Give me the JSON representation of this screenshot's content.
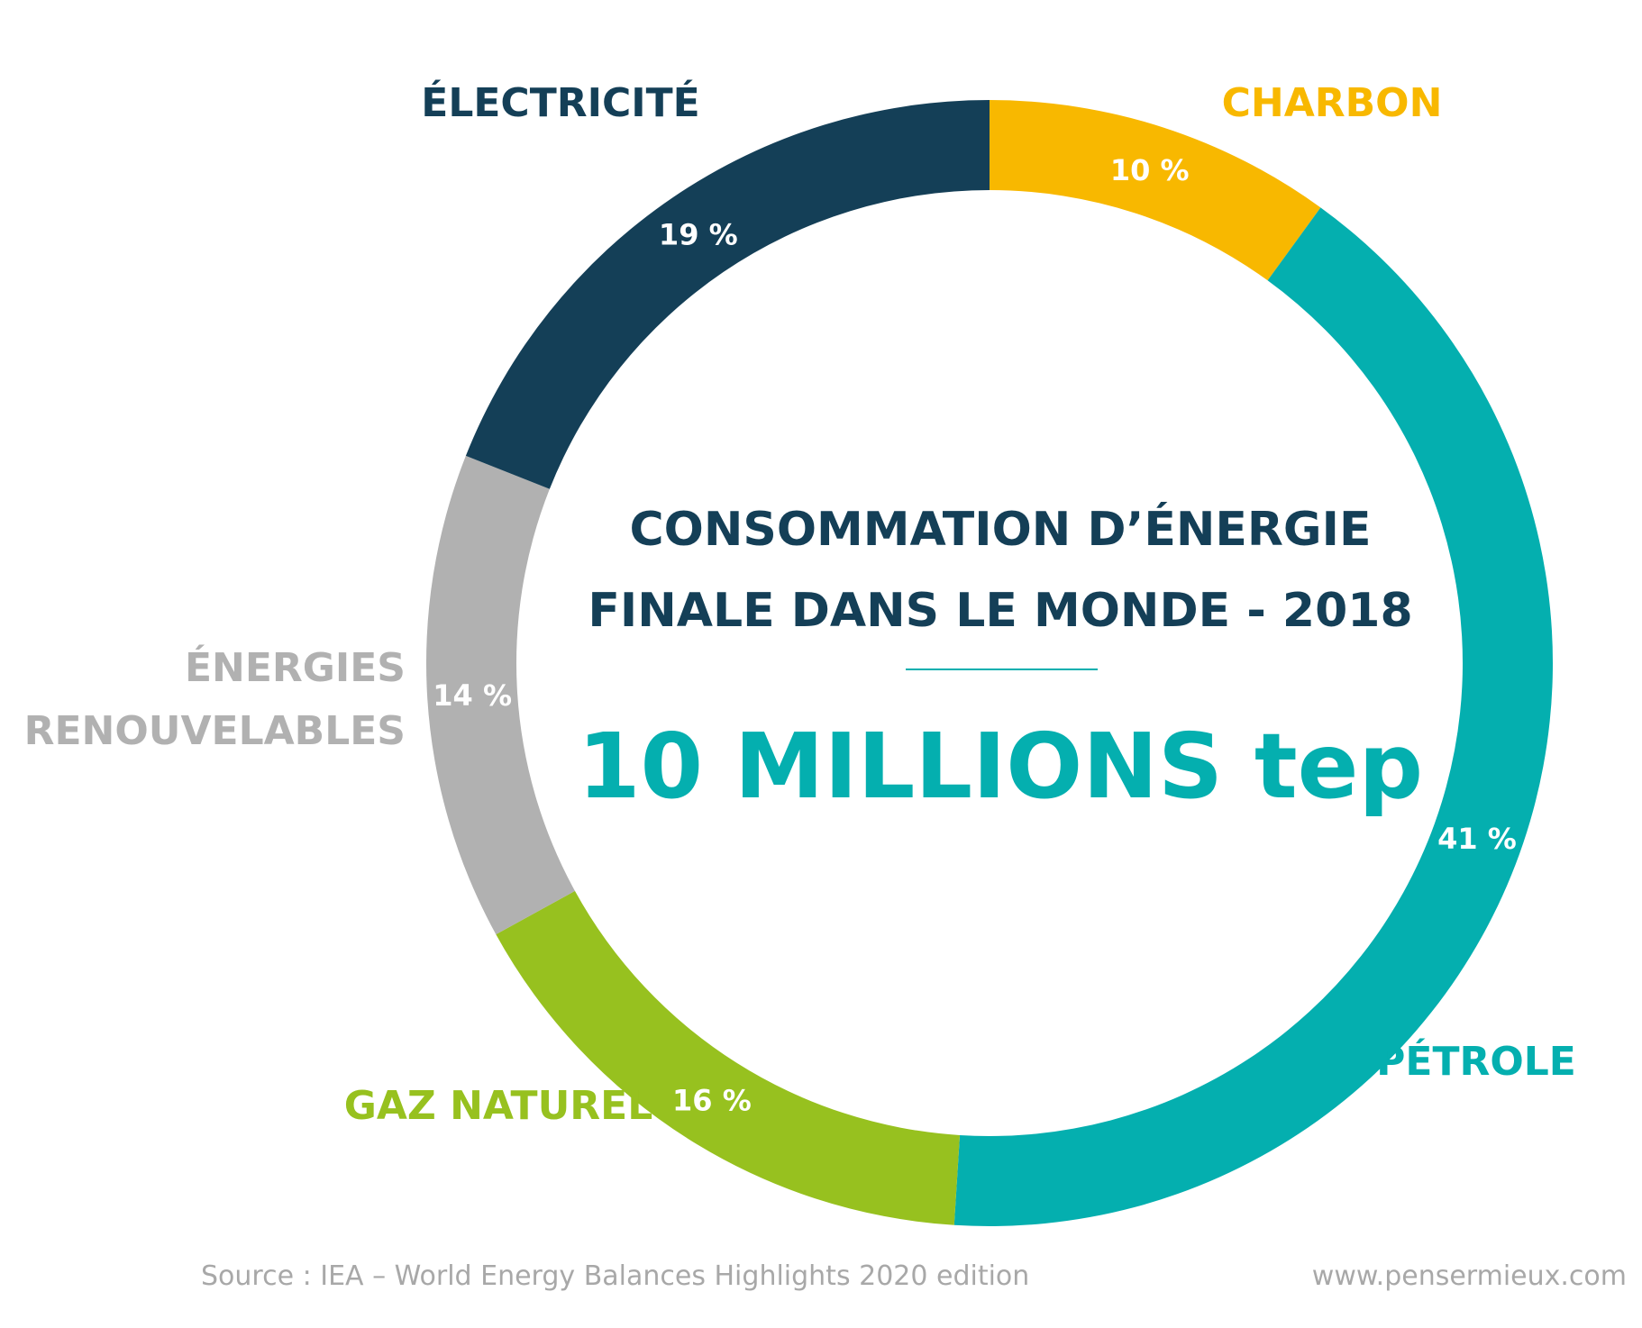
{
  "chart_data": {
    "type": "pie",
    "title_lines": [
      "CONSOMMATION D’ÉNERGIE",
      "FINALE DANS LE MONDE - 2018"
    ],
    "total": "10 MILLIONS tep",
    "slices": [
      {
        "name": "CHARBON",
        "value": 10,
        "value_label": "10 %",
        "color": "#f8b800"
      },
      {
        "name": "PÉTROLE",
        "value": 41,
        "value_label": "41 %",
        "color": "#04afaf"
      },
      {
        "name": "GAZ NATUREL",
        "value": 16,
        "value_label": "16 %",
        "color": "#97c11f"
      },
      {
        "name_lines": [
          "ÉNERGIES",
          "RENOUVELABLES"
        ],
        "value": 14,
        "value_label": "14 %",
        "color": "#b1b1b1"
      },
      {
        "name": "ÉLECTRICITÉ",
        "value": 19,
        "value_label": "19 %",
        "color": "#143f57"
      }
    ],
    "accent_line_color": "#04afaf"
  },
  "footer": {
    "source": "Source : IEA – World Energy Balances Highlights 2020 edition",
    "website": "www.pensermieux.com"
  }
}
